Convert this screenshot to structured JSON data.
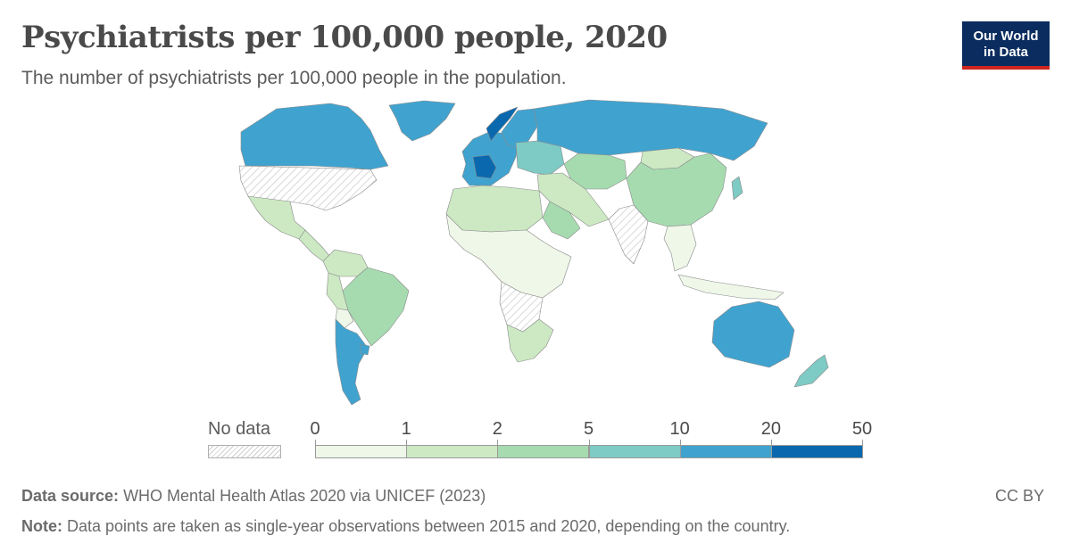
{
  "header": {
    "title": "Psychiatrists per 100,000 people, 2020",
    "subtitle": "The number of psychiatrists per 100,000 people in the population."
  },
  "logo": {
    "line1": "Our World",
    "line2": "in Data",
    "bg": "#0b2c5e",
    "accent": "#ce261e"
  },
  "legend": {
    "no_data_label": "No data",
    "ticks": [
      "0",
      "1",
      "2",
      "5",
      "10",
      "20",
      "50"
    ],
    "bins": [
      {
        "from": 0,
        "to": 1,
        "color": "#eef7e8"
      },
      {
        "from": 1,
        "to": 2,
        "color": "#cce9c3"
      },
      {
        "from": 2,
        "to": 5,
        "color": "#a6dbb0"
      },
      {
        "from": 5,
        "to": 10,
        "color": "#7ecac4"
      },
      {
        "from": 10,
        "to": 20,
        "color": "#40a3cf"
      },
      {
        "from": 20,
        "to": 50,
        "color": "#0a69ae"
      }
    ]
  },
  "map_regions": [
    {
      "region": "Canada",
      "bin": 4
    },
    {
      "region": "Greenland",
      "bin": 4
    },
    {
      "region": "United States",
      "bin": -1
    },
    {
      "region": "Mexico",
      "bin": 1
    },
    {
      "region": "Central America",
      "bin": 1
    },
    {
      "region": "Colombia / Venezuela",
      "bin": 1
    },
    {
      "region": "Brazil",
      "bin": 2
    },
    {
      "region": "Peru",
      "bin": 1
    },
    {
      "region": "Bolivia",
      "bin": 0
    },
    {
      "region": "Argentina / Chile",
      "bin": 4
    },
    {
      "region": "Uruguay",
      "bin": 4
    },
    {
      "region": "Western Europe",
      "bin": 4
    },
    {
      "region": "France",
      "bin": 5
    },
    {
      "region": "Norway",
      "bin": 5
    },
    {
      "region": "Sweden / Finland",
      "bin": 4
    },
    {
      "region": "Eastern Europe",
      "bin": 3
    },
    {
      "region": "Russia",
      "bin": 4
    },
    {
      "region": "Kazakhstan / Central Asia",
      "bin": 2
    },
    {
      "region": "China",
      "bin": 2
    },
    {
      "region": "Mongolia",
      "bin": 1
    },
    {
      "region": "Japan",
      "bin": 3
    },
    {
      "region": "India / South Asia",
      "bin": -1
    },
    {
      "region": "Middle East",
      "bin": 1
    },
    {
      "region": "Saudi Arabia",
      "bin": 2
    },
    {
      "region": "North Africa",
      "bin": 1
    },
    {
      "region": "Sub-Saharan Africa",
      "bin": 0
    },
    {
      "region": "Central Africa",
      "bin": -1
    },
    {
      "region": "Southern Africa",
      "bin": 1
    },
    {
      "region": "Southeast Asia",
      "bin": 0
    },
    {
      "region": "Indonesia",
      "bin": 0
    },
    {
      "region": "Australia",
      "bin": 4
    },
    {
      "region": "New Zealand",
      "bin": 3
    }
  ],
  "footer": {
    "source_label": "Data source:",
    "source_text": "WHO Mental Health Atlas 2020 via UNICEF (2023)",
    "note_label": "Note:",
    "note_text": "Data points are taken as single-year observations between 2015 and 2020, depending on the country.",
    "license": "CC BY"
  }
}
